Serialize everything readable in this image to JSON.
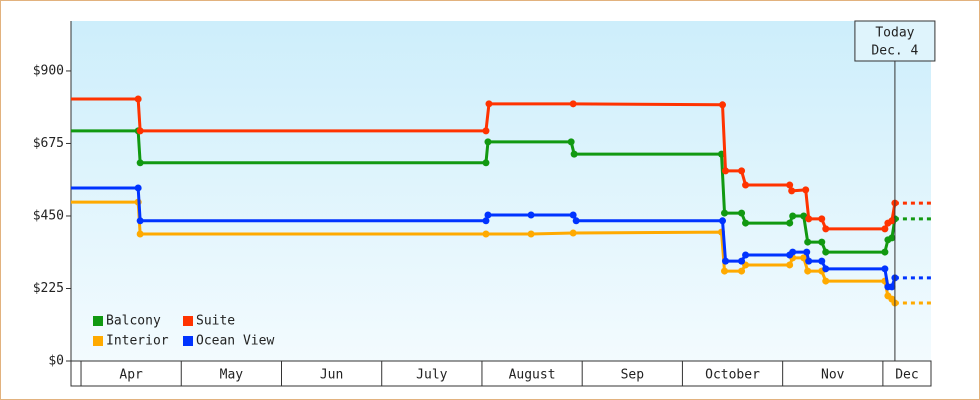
{
  "chart_data": {
    "type": "line",
    "xlim": [
      3.9,
      12.48
    ],
    "ylim": [
      0,
      1055
    ],
    "yticks": [
      {
        "value": 0,
        "label": "$0"
      },
      {
        "value": 225,
        "label": "$225"
      },
      {
        "value": 450,
        "label": "$450"
      },
      {
        "value": 675,
        "label": "$675"
      },
      {
        "value": 900,
        "label": "$900"
      }
    ],
    "xticks": [
      {
        "value": 4.5,
        "label": "Apr"
      },
      {
        "value": 5.5,
        "label": "May"
      },
      {
        "value": 6.5,
        "label": "Jun"
      },
      {
        "value": 7.5,
        "label": "July"
      },
      {
        "value": 8.5,
        "label": "August"
      },
      {
        "value": 9.5,
        "label": "Sep"
      },
      {
        "value": 10.5,
        "label": "October"
      },
      {
        "value": 11.5,
        "label": "Nov"
      },
      {
        "value": 12.24,
        "label": "Dec"
      }
    ],
    "today": {
      "x": 12.12,
      "lines": [
        "Today",
        "Dec. 4"
      ]
    },
    "series": [
      {
        "name": "Balcony",
        "color": "#119911",
        "x": [
          3.9,
          4.57,
          4.59,
          8.04,
          8.06,
          8.89,
          8.92,
          10.39,
          10.42,
          10.59,
          10.63,
          11.07,
          11.1,
          11.21,
          11.25,
          11.39,
          11.43,
          12.02,
          12.05,
          12.09,
          12.12
        ],
        "values": [
          714,
          714,
          615,
          615,
          680,
          680,
          642,
          642,
          459,
          459,
          428,
          428,
          450,
          450,
          369,
          369,
          338,
          338,
          376,
          382,
          441
        ]
      },
      {
        "name": "Suite",
        "color": "#ff3300",
        "x": [
          3.9,
          4.57,
          4.59,
          8.04,
          8.07,
          8.91,
          10.4,
          10.43,
          10.59,
          10.63,
          11.07,
          11.09,
          11.23,
          11.26,
          11.39,
          11.43,
          12.02,
          12.05,
          12.09,
          12.12
        ],
        "values": [
          813,
          813,
          714,
          714,
          798,
          798,
          795,
          590,
          590,
          546,
          546,
          528,
          531,
          441,
          441,
          410,
          410,
          428,
          435,
          490
        ]
      },
      {
        "name": "Interior",
        "color": "#ffaa00",
        "x": [
          3.9,
          4.57,
          4.59,
          8.04,
          8.49,
          8.91,
          10.39,
          10.42,
          10.59,
          10.63,
          11.07,
          11.1,
          11.21,
          11.25,
          11.39,
          11.43,
          12.02,
          12.05,
          12.09,
          12.12
        ],
        "values": [
          493,
          493,
          394,
          394,
          394,
          397,
          400,
          279,
          279,
          298,
          298,
          320,
          320,
          279,
          279,
          248,
          248,
          202,
          192,
          180
        ]
      },
      {
        "name": "Ocean View",
        "color": "#0033ff",
        "x": [
          3.9,
          4.57,
          4.59,
          8.04,
          8.06,
          8.49,
          8.91,
          8.94,
          10.4,
          10.43,
          10.59,
          10.63,
          11.07,
          11.1,
          11.24,
          11.26,
          11.39,
          11.43,
          12.02,
          12.05,
          12.09,
          12.12
        ],
        "values": [
          537,
          537,
          435,
          435,
          453,
          453,
          453,
          435,
          435,
          310,
          310,
          329,
          329,
          338,
          338,
          310,
          310,
          286,
          286,
          230,
          230,
          258
        ]
      }
    ]
  }
}
